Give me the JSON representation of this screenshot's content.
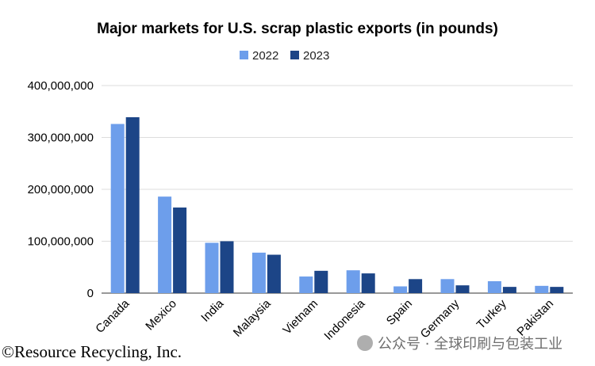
{
  "chart_data": {
    "type": "bar",
    "title": "Major markets for U.S. scrap plastic exports (in pounds)",
    "categories": [
      "Canada",
      "Mexico",
      "India",
      "Malaysia",
      "Vietnam",
      "Indonesia",
      "Spain",
      "Germany",
      "Turkey",
      "Pakistan"
    ],
    "series": [
      {
        "name": "2022",
        "color": "#6d9eeb",
        "values": [
          326000000,
          186000000,
          97000000,
          78000000,
          32000000,
          44000000,
          13000000,
          27000000,
          23000000,
          14000000
        ]
      },
      {
        "name": "2023",
        "color": "#1c4587",
        "values": [
          339000000,
          165000000,
          100000000,
          74000000,
          43000000,
          38000000,
          27000000,
          15000000,
          12000000,
          12000000
        ]
      }
    ],
    "ylim": [
      0,
      400000000
    ],
    "yticks": [
      0,
      100000000,
      200000000,
      300000000,
      400000000
    ],
    "ytick_labels": [
      "0",
      "100,000,000",
      "200,000,000",
      "300,000,000",
      "400,000,000"
    ],
    "xlabel": "",
    "ylabel": "",
    "grid": true,
    "legend_position": "top-center"
  },
  "credit": "©Resource Recycling, Inc.",
  "watermark": "公众号 · 全球印刷与包装工业"
}
